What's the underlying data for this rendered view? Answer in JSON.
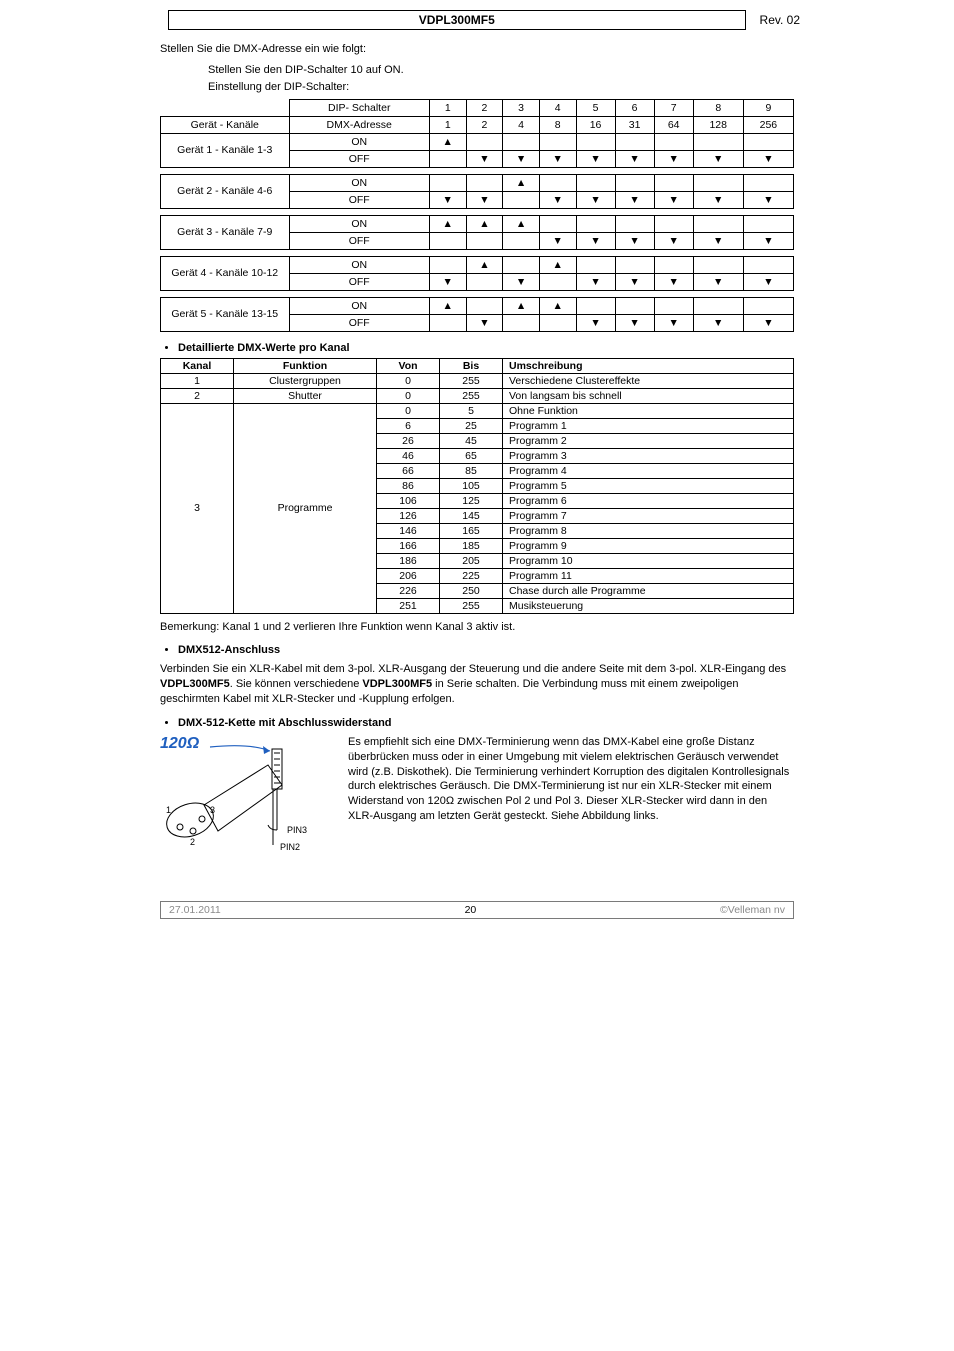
{
  "header": {
    "title": "VDPL300MF5",
    "rev": "Rev. 02"
  },
  "intro": "Stellen Sie die DMX-Adresse ein wie folgt:",
  "instr": [
    "Stellen Sie den DIP-Schalter 10 auf ON.",
    "Einstellung der DIP-Schalter:"
  ],
  "dip": {
    "header_left1": "DIP- Schalter",
    "header_left2_a": "Gerät - Kanäle",
    "header_left2_b": "DMX-Adresse",
    "nums": [
      "1",
      "2",
      "3",
      "4",
      "5",
      "6",
      "7",
      "8",
      "9"
    ],
    "addr": [
      "1",
      "2",
      "4",
      "8",
      "16",
      "31",
      "64",
      "128",
      "256"
    ],
    "on": "ON",
    "off": "OFF",
    "up": "▲",
    "down": "▼",
    "devices": [
      {
        "label": "Gerät 1 - Kanäle 1-3",
        "on": [
          "▲",
          "",
          "",
          "",
          "",
          "",
          "",
          "",
          ""
        ],
        "off": [
          "",
          "▼",
          "▼",
          "▼",
          "▼",
          "▼",
          "▼",
          "▼",
          "▼"
        ]
      },
      {
        "label": "Gerät 2 - Kanäle 4-6",
        "on": [
          "",
          "",
          "▲",
          "",
          "",
          "",
          "",
          "",
          ""
        ],
        "off": [
          "▼",
          "▼",
          "",
          "▼",
          "▼",
          "▼",
          "▼",
          "▼",
          "▼"
        ]
      },
      {
        "label": "Gerät 3 - Kanäle 7-9",
        "on": [
          "▲",
          "▲",
          "▲",
          "",
          "",
          "",
          "",
          "",
          ""
        ],
        "off": [
          "",
          "",
          "",
          "▼",
          "▼",
          "▼",
          "▼",
          "▼",
          "▼"
        ]
      },
      {
        "label": "Gerät 4 - Kanäle 10-12",
        "on": [
          "",
          "▲",
          "",
          "▲",
          "",
          "",
          "",
          "",
          ""
        ],
        "off": [
          "▼",
          "",
          "▼",
          "",
          "▼",
          "▼",
          "▼",
          "▼",
          "▼"
        ]
      },
      {
        "label": "Gerät 5 - Kanäle 13-15",
        "on": [
          "▲",
          "",
          "▲",
          "▲",
          "",
          "",
          "",
          "",
          ""
        ],
        "off": [
          "",
          "▼",
          "",
          "",
          "▼",
          "▼",
          "▼",
          "▼",
          "▼"
        ]
      }
    ]
  },
  "dmxhead": "Detaillierte DMX-Werte pro Kanal",
  "dmxcols": {
    "kanal": "Kanal",
    "funk": "Funktion",
    "von": "Von",
    "bis": "Bis",
    "um": "Umschreibung"
  },
  "dmxrows_simple": [
    {
      "k": "1",
      "f": "Clustergruppen",
      "v": "0",
      "b": "255",
      "u": "Verschiedene Clustereffekte"
    },
    {
      "k": "2",
      "f": "Shutter",
      "v": "0",
      "b": "255",
      "u": "Von langsam bis schnell"
    }
  ],
  "dmxrow3": {
    "k": "3",
    "f": "Programme",
    "ranges": [
      {
        "v": "0",
        "b": "5",
        "u": "Ohne Funktion"
      },
      {
        "v": "6",
        "b": "25",
        "u": "Programm 1"
      },
      {
        "v": "26",
        "b": "45",
        "u": "Programm 2"
      },
      {
        "v": "46",
        "b": "65",
        "u": "Programm 3"
      },
      {
        "v": "66",
        "b": "85",
        "u": "Programm 4"
      },
      {
        "v": "86",
        "b": "105",
        "u": "Programm 5"
      },
      {
        "v": "106",
        "b": "125",
        "u": "Programm 6"
      },
      {
        "v": "126",
        "b": "145",
        "u": "Programm 7"
      },
      {
        "v": "146",
        "b": "165",
        "u": "Programm 8"
      },
      {
        "v": "166",
        "b": "185",
        "u": "Programm 9"
      },
      {
        "v": "186",
        "b": "205",
        "u": "Programm 10"
      },
      {
        "v": "206",
        "b": "225",
        "u": "Programm 11"
      },
      {
        "v": "226",
        "b": "250",
        "u": "Chase durch alle Programme"
      },
      {
        "v": "251",
        "b": "255",
        "u": "Musiksteuerung"
      }
    ]
  },
  "remark": "Bemerkung: Kanal 1 und 2 verlieren Ihre Funktion wenn Kanal 3 aktiv ist.",
  "sec2": "DMX512-Anschluss",
  "sec2text": "Verbinden Sie ein XLR-Kabel mit dem 3-pol. XLR-Ausgang der Steuerung und die andere Seite mit dem 3-pol. XLR-Eingang des <b>VDPL300MF5</b>. Sie können verschiedene <b>VDPL300MF5</b> in Serie schalten. Die Verbindung muss mit einem zweipoligen geschirmten Kabel mit XLR-Stecker und -Kupplung erfolgen.",
  "sec3": "DMX-512-Kette mit Abschlusswiderstand",
  "sec3text": "Es empfiehlt sich eine DMX-Terminierung wenn das DMX-Kabel eine große Distanz überbrücken muss oder in einer Umgebung mit vielem elektrischen Geräusch verwendet wird (z.B. Diskothek). Die Terminierung verhindert Korruption des digitalen Kontrollesignals durch elektrisches Geräusch. Die DMX-Terminierung ist nur ein XLR-Stecker mit einem Widerstand von 120Ω zwischen Pol 2 und Pol 3. Dieser XLR-Stecker wird dann in den XLR-Ausgang am letzten Gerät gesteckt. Siehe Abbildung links.",
  "diagram": {
    "r": "120Ω",
    "p3": "PIN3",
    "p2": "PIN2"
  },
  "footer": {
    "date": "27.01.2011",
    "page": "20",
    "copy": "©Velleman nv"
  }
}
